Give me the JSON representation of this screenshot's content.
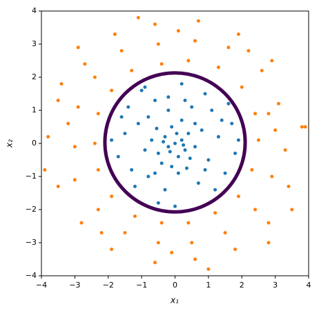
{
  "chart_data": {
    "type": "scatter",
    "xlabel": "x₁",
    "ylabel": "x₂",
    "xlim": [
      -4,
      4
    ],
    "ylim": [
      -4,
      4
    ],
    "xticks": [
      {
        "value": -4,
        "label": "−4"
      },
      {
        "value": -3,
        "label": "−3"
      },
      {
        "value": -2,
        "label": "−2"
      },
      {
        "value": -1,
        "label": "−1"
      },
      0,
      1,
      2,
      3,
      4
    ],
    "yticks": [
      {
        "value": -4,
        "label": "−4"
      },
      {
        "value": -3,
        "label": "−3"
      },
      {
        "value": -2,
        "label": "−2"
      },
      {
        "value": -1,
        "label": "−1"
      },
      0,
      1,
      2,
      3,
      4
    ],
    "series": [
      {
        "color": "#ff7f0e",
        "x": [
          2.5,
          3.3,
          3.8,
          2.4,
          3.1,
          2.8,
          2.0,
          2.6,
          2.9,
          1.3,
          1.6,
          1.9,
          0.4,
          0.6,
          0.7,
          -0.4,
          -0.5,
          -0.6,
          -1.3,
          -1.6,
          -1.8,
          -1.9,
          -2.4,
          -2.7,
          -2.3,
          -2.9,
          -3.5,
          -2.4,
          -3.0,
          -3.8,
          -2.3,
          -3.0,
          -3.5,
          -1.9,
          -2.3,
          -2.8,
          -1.2,
          -1.5,
          -1.9,
          -0.4,
          -0.5,
          -0.6,
          0.4,
          0.5,
          0.6,
          1.2,
          1.5,
          1.8,
          1.9,
          2.4,
          2.8,
          2.3,
          2.9,
          3.4,
          3.0,
          -3.2,
          0.1,
          -0.1,
          2.2,
          -2.2,
          3.5,
          -3.4,
          1.0,
          -1.1,
          3.9,
          -3.9,
          2.8,
          -2.9
        ],
        "y": [
          0.1,
          -0.2,
          0.5,
          0.9,
          1.2,
          0.9,
          1.7,
          2.2,
          2.5,
          2.3,
          2.9,
          3.3,
          2.5,
          3.1,
          3.7,
          2.4,
          3.0,
          3.6,
          2.2,
          2.8,
          3.3,
          1.6,
          2.0,
          2.4,
          0.9,
          1.1,
          1.3,
          0.0,
          -0.1,
          0.2,
          -0.8,
          -1.1,
          -1.3,
          -1.6,
          -2.0,
          -2.4,
          -2.2,
          -2.7,
          -3.2,
          -2.4,
          -3.0,
          -3.6,
          -2.4,
          -3.0,
          -3.5,
          -2.1,
          -2.7,
          -3.2,
          -1.6,
          -2.0,
          -2.4,
          -0.8,
          -1.0,
          -1.3,
          0.4,
          0.6,
          3.4,
          -3.3,
          2.8,
          -2.7,
          -2.0,
          1.8,
          -3.8,
          3.8,
          0.5,
          -0.8,
          -3.0,
          2.9
        ]
      },
      {
        "color": "#1f77b4",
        "x": [
          0,
          0.2,
          -0.3,
          0.1,
          -0.2,
          0.4,
          -0.5,
          0.3,
          -0.1,
          0.6,
          -0.7,
          0.2,
          -0.4,
          0.8,
          -0.9,
          0.1,
          -0.2,
          1.0,
          -1.1,
          0.5,
          -0.6,
          1.3,
          -1.3,
          0.7,
          -0.3,
          1.5,
          -1.5,
          0.9,
          -1.0,
          1.7,
          -1.7,
          0.2,
          -0.5,
          1.2,
          -1.4,
          1.8,
          -0.8,
          0.6,
          -0.1,
          0.35,
          -0.55,
          1.1,
          -1.2,
          0.05,
          -0.15,
          0.25,
          -0.35,
          0.45,
          1.6,
          -1.9,
          0.0,
          -0.8,
          1.4,
          -0.2,
          0.9,
          -1.6,
          0.3,
          -0.6,
          1.9,
          -0.9
        ],
        "y": [
          0,
          0.1,
          0.2,
          -0.4,
          -0.1,
          0.3,
          -0.3,
          -0.2,
          0.5,
          -0.1,
          0.1,
          0.7,
          -0.6,
          0.4,
          -0.2,
          -0.9,
          1.0,
          -0.5,
          0.6,
          1.1,
          1.3,
          0.2,
          -0.8,
          -1.2,
          -1.4,
          -0.9,
          0.3,
          1.5,
          1.6,
          0.6,
          -0.4,
          1.8,
          -1.8,
          -1.4,
          1.1,
          -0.3,
          0.8,
          0.6,
          -0.7,
          -0.75,
          0.45,
          1.0,
          -1.3,
          0.3,
          -0.25,
          -0.05,
          0.05,
          -0.45,
          1.2,
          0.1,
          -1.9,
          -1.0,
          0.7,
          1.4,
          -0.8,
          0.8,
          1.3,
          -0.9,
          0.1,
          1.7
        ]
      }
    ],
    "boundary": {
      "cx": 0,
      "cy": 0.03,
      "r": 2.1,
      "color": "#440154"
    }
  }
}
